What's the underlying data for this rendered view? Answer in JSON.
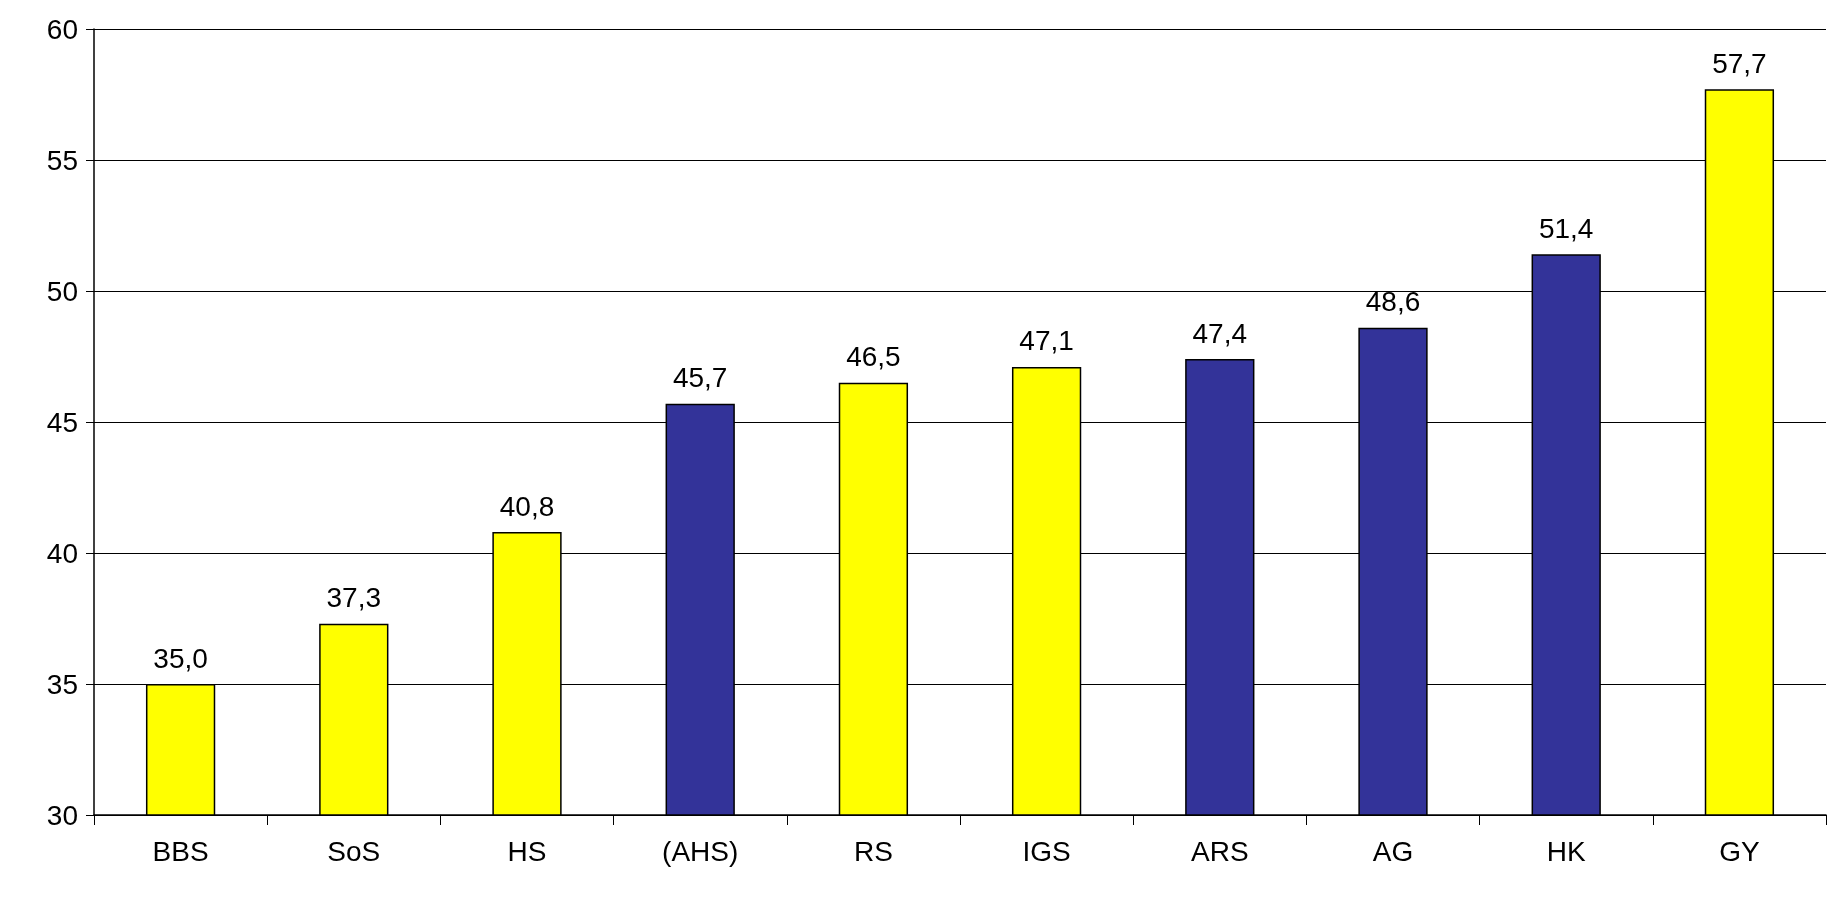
{
  "chart_data": {
    "type": "bar",
    "categories": [
      "BBS",
      "SoS",
      "HS",
      "(AHS)",
      "RS",
      "IGS",
      "ARS",
      "AG",
      "HK",
      "GY"
    ],
    "values": [
      35.0,
      37.3,
      40.8,
      45.7,
      46.5,
      47.1,
      47.4,
      48.6,
      51.4,
      57.7
    ],
    "value_labels": [
      "35,0",
      "37,3",
      "40,8",
      "45,7",
      "46,5",
      "47,1",
      "47,4",
      "48,6",
      "51,4",
      "57,7"
    ],
    "colors": [
      "#ffff00",
      "#ffff00",
      "#ffff00",
      "#333399",
      "#ffff00",
      "#ffff00",
      "#333399",
      "#333399",
      "#333399",
      "#ffff00"
    ],
    "ylim": [
      30,
      60
    ],
    "yticks": [
      30,
      35,
      40,
      45,
      50,
      55,
      60
    ],
    "grid": "y"
  }
}
